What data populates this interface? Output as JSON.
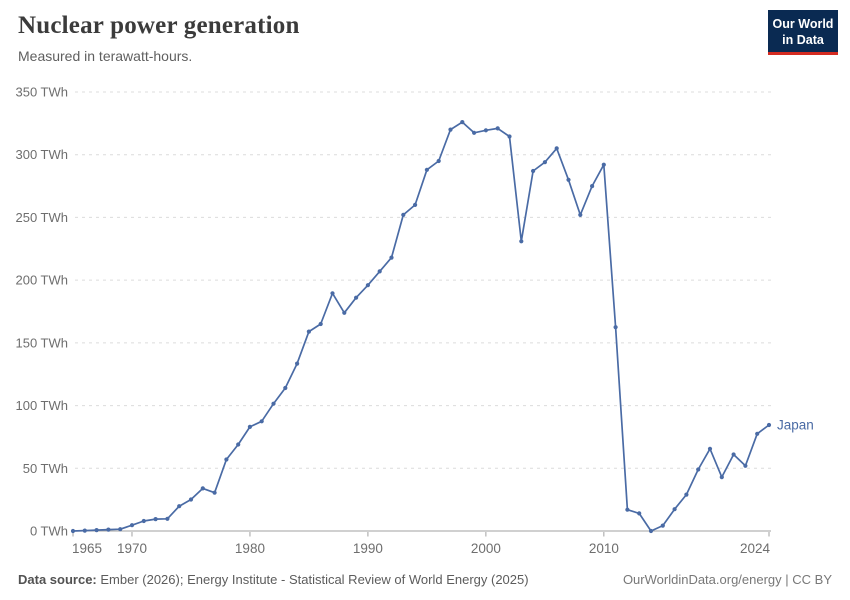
{
  "header": {
    "title": "Nuclear power generation",
    "subtitle": "Measured in terawatt-hours."
  },
  "logo": {
    "line1": "Our World",
    "line2": "in Data",
    "bg_color": "#0a2a52",
    "bar_color": "#d42b21"
  },
  "footer": {
    "source_label": "Data source:",
    "source_rest": " Ember (2026); Energy Institute - Statistical Review of World Energy (2025)",
    "credit": "OurWorldinData.org/energy | CC BY"
  },
  "chart_data": {
    "type": "line",
    "title": "Nuclear power generation",
    "subtitle": "Measured in terawatt-hours.",
    "y_tick_suffix": " TWh",
    "yticks": [
      0,
      50,
      100,
      150,
      200,
      250,
      300,
      350
    ],
    "xticks": [
      1965,
      1970,
      1980,
      1990,
      2000,
      2010,
      2024
    ],
    "xlim": [
      1965,
      2024
    ],
    "ylim": [
      0,
      350
    ],
    "grid": "horizontal-dashed",
    "legend_position": "end-of-line-label",
    "series": [
      {
        "name": "Japan",
        "color": "#4a6ba5",
        "x": [
          1965,
          1966,
          1967,
          1968,
          1969,
          1970,
          1971,
          1972,
          1973,
          1974,
          1975,
          1976,
          1977,
          1978,
          1979,
          1980,
          1981,
          1982,
          1983,
          1984,
          1985,
          1986,
          1987,
          1988,
          1989,
          1990,
          1991,
          1992,
          1993,
          1994,
          1995,
          1996,
          1997,
          1998,
          1999,
          2000,
          2001,
          2002,
          2003,
          2004,
          2005,
          2006,
          2007,
          2008,
          2009,
          2010,
          2011,
          2012,
          2013,
          2014,
          2015,
          2016,
          2017,
          2018,
          2019,
          2020,
          2021,
          2022,
          2023,
          2024
        ],
        "values": [
          0,
          0.3,
          0.7,
          1.1,
          1.4,
          4.6,
          8,
          9.5,
          9.7,
          19.8,
          25.1,
          34,
          30.5,
          57,
          69,
          83,
          87.5,
          101.5,
          114,
          133.5,
          159,
          165,
          189.5,
          174,
          186,
          196,
          207,
          218,
          252,
          260,
          288,
          295,
          320,
          326,
          317.5,
          319.5,
          321,
          314.5,
          231,
          287,
          294,
          305,
          280,
          252,
          275,
          292,
          162.5,
          17,
          14,
          0,
          4.3,
          17.4,
          29,
          49,
          65.5,
          43,
          61,
          52,
          77.5,
          84.5
        ]
      }
    ]
  }
}
